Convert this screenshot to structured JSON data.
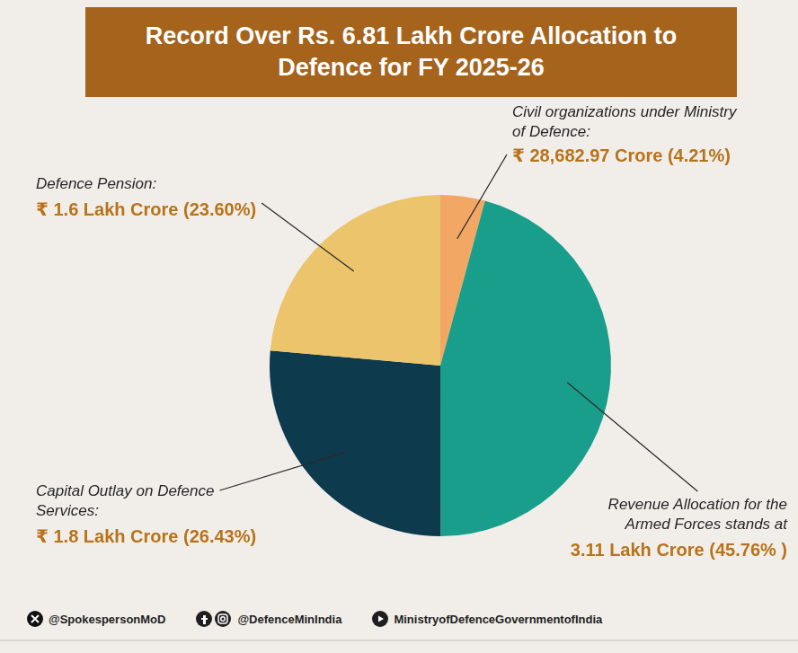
{
  "chart_data": {
    "type": "pie",
    "title": "Record Over Rs. 6.81 Lakh Crore Allocation to Defence for FY 2025-26",
    "categories": [
      "Civil organizations under Ministry of Defence:",
      "Revenue Allocation for the Armed Forces stands at",
      "Capital Outlay on Defence Services:",
      "Defence Pension:"
    ],
    "values": [
      4.21,
      45.76,
      26.43,
      23.6
    ],
    "value_labels": [
      "₹ 28,682.97 Crore (4.21%)",
      "3.11 Lakh Crore (45.76% )",
      "₹ 1.8 Lakh Crore (26.43%)",
      "₹ 1.6 Lakh Crore (23.60%)"
    ],
    "colors": [
      "#f2a765",
      "#1a9e8c",
      "#0e3a4e",
      "#ebc46c"
    ],
    "data_labels": true
  },
  "footer": {
    "handles": [
      "@SpokespersonMoD",
      "@DefenceMinIndia",
      "MinistryofDefenceGovernmentofIndia"
    ]
  }
}
